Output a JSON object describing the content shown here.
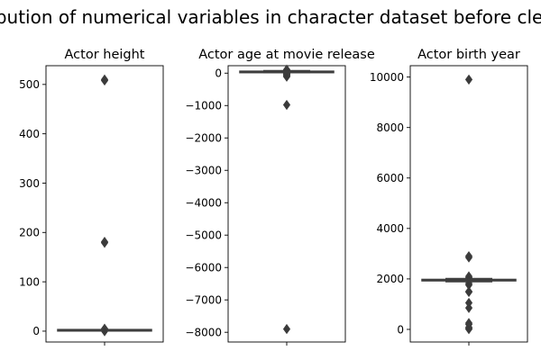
{
  "chart_data": {
    "title": "Distribution of numerical variables in character dataset before cleaning",
    "type": "box",
    "panels": [
      {
        "title": "Actor height",
        "ylim": [
          -22,
          538
        ],
        "yticks": [
          0,
          100,
          200,
          300,
          400,
          500
        ],
        "ytick_labels": [
          "0",
          "100",
          "200",
          "300",
          "400",
          "500"
        ],
        "box": {
          "whislo": 1.4,
          "q1": 1.7,
          "median": 1.75,
          "q3": 1.85,
          "whishi": 2.05
        },
        "outliers": [
          510,
          508,
          181,
          179,
          5,
          4,
          3,
          2.3,
          0.7,
          0.5,
          0.3,
          0.1
        ]
      },
      {
        "title": "Actor age at movie release",
        "ylim": [
          -8300,
          230
        ],
        "yticks": [
          0,
          -1000,
          -2000,
          -3000,
          -4000,
          -5000,
          -6000,
          -7000,
          -8000
        ],
        "ytick_labels": [
          "0",
          "−1000",
          "−2000",
          "−3000",
          "−4000",
          "−5000",
          "−6000",
          "−7000",
          "−8000"
        ],
        "box": {
          "whislo": 15,
          "q1": 28,
          "median": 37,
          "q3": 48,
          "whishi": 78
        },
        "outliers": [
          110,
          100,
          90,
          80,
          -5,
          -15,
          -25,
          -35,
          -50,
          -70,
          -90,
          -110,
          -980,
          -7900
        ]
      },
      {
        "title": "Actor birth year",
        "ylim": [
          -500,
          10450
        ],
        "yticks": [
          0,
          2000,
          4000,
          6000,
          8000,
          10000
        ],
        "ytick_labels": [
          "0",
          "2000",
          "4000",
          "6000",
          "8000",
          "10000"
        ],
        "box": {
          "whislo": 1890,
          "q1": 1935,
          "median": 1955,
          "q3": 1970,
          "whishi": 2015
        },
        "outliers": [
          9900,
          2900,
          2850,
          2100,
          2050,
          1820,
          1760,
          1500,
          1480,
          1050,
          850,
          250,
          200,
          80,
          40,
          10
        ]
      }
    ]
  }
}
